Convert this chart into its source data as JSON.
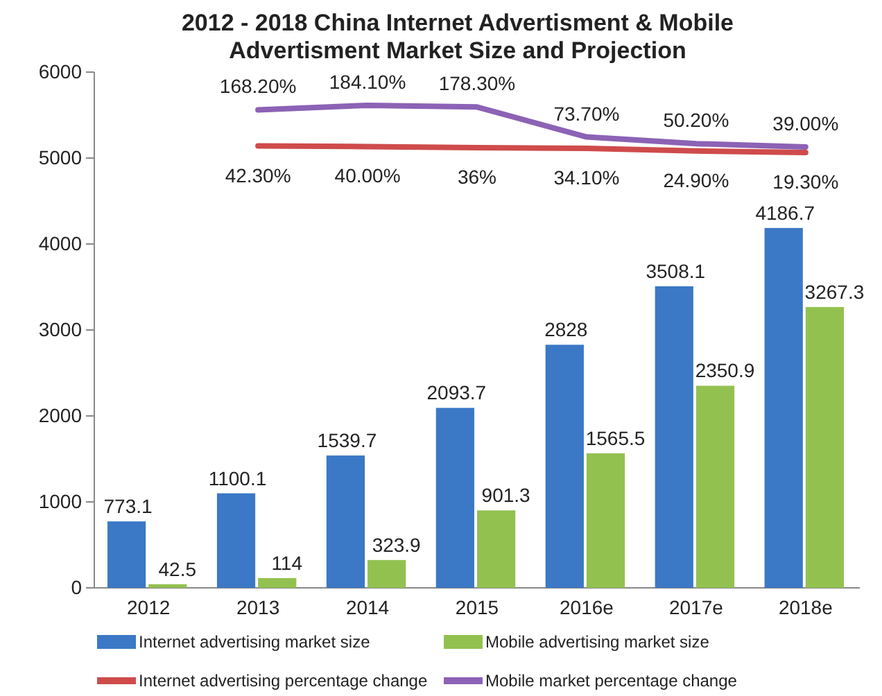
{
  "chart_data": {
    "type": "bar",
    "title": "2012 - 2018 China Internet Advertisment & Mobile Advertisment Market Size and Projection",
    "categories": [
      "2012",
      "2013",
      "2014",
      "2015",
      "2016e",
      "2017e",
      "2018e"
    ],
    "ylim": [
      0,
      6000
    ],
    "yticks": [
      0,
      1000,
      2000,
      3000,
      4000,
      5000,
      6000
    ],
    "y2lim": [
      -1500,
      300
    ],
    "tick_labels": "xy",
    "grid": false,
    "legend": "bottom",
    "series": [
      {
        "name": "Internet advertising market size",
        "color": "#3b78c6",
        "values": [
          773.1,
          1100.1,
          1539.7,
          2093.7,
          2828,
          3508.1,
          4186.7
        ],
        "value_labels": [
          "773.1",
          "1100.1",
          "1539.7",
          "2093.7",
          "2828",
          "3508.1",
          "4186.7"
        ]
      },
      {
        "name": "Mobile advertising market size",
        "color": "#93c150",
        "values": [
          42.5,
          114,
          323.9,
          901.3,
          1565.5,
          2350.9,
          3267.3
        ],
        "value_labels": [
          "42.5",
          "114",
          "323.9",
          "901.3",
          "1565.5",
          "2350.9",
          "3267.3"
        ]
      },
      {
        "name": "Internet advertising percentage change",
        "type": "line",
        "axis": "y2",
        "color": "#cf4b4b",
        "values": [
          null,
          42.3,
          40,
          36,
          34.1,
          24.9,
          19.3
        ],
        "value_labels": [
          null,
          "42.30%",
          "40.00%",
          "36%",
          "34.10%",
          "24.90%",
          "19.30%"
        ]
      },
      {
        "name": "Mobile market percentage change",
        "type": "line",
        "axis": "y2",
        "color": "#8c62b5",
        "values": [
          null,
          168.2,
          184.1,
          178.3,
          73.7,
          50.2,
          39.0
        ],
        "value_labels": [
          null,
          "168.20%",
          "184.10%",
          "178.30%",
          "73.70%",
          "50.20%",
          "39.00%"
        ]
      }
    ]
  }
}
